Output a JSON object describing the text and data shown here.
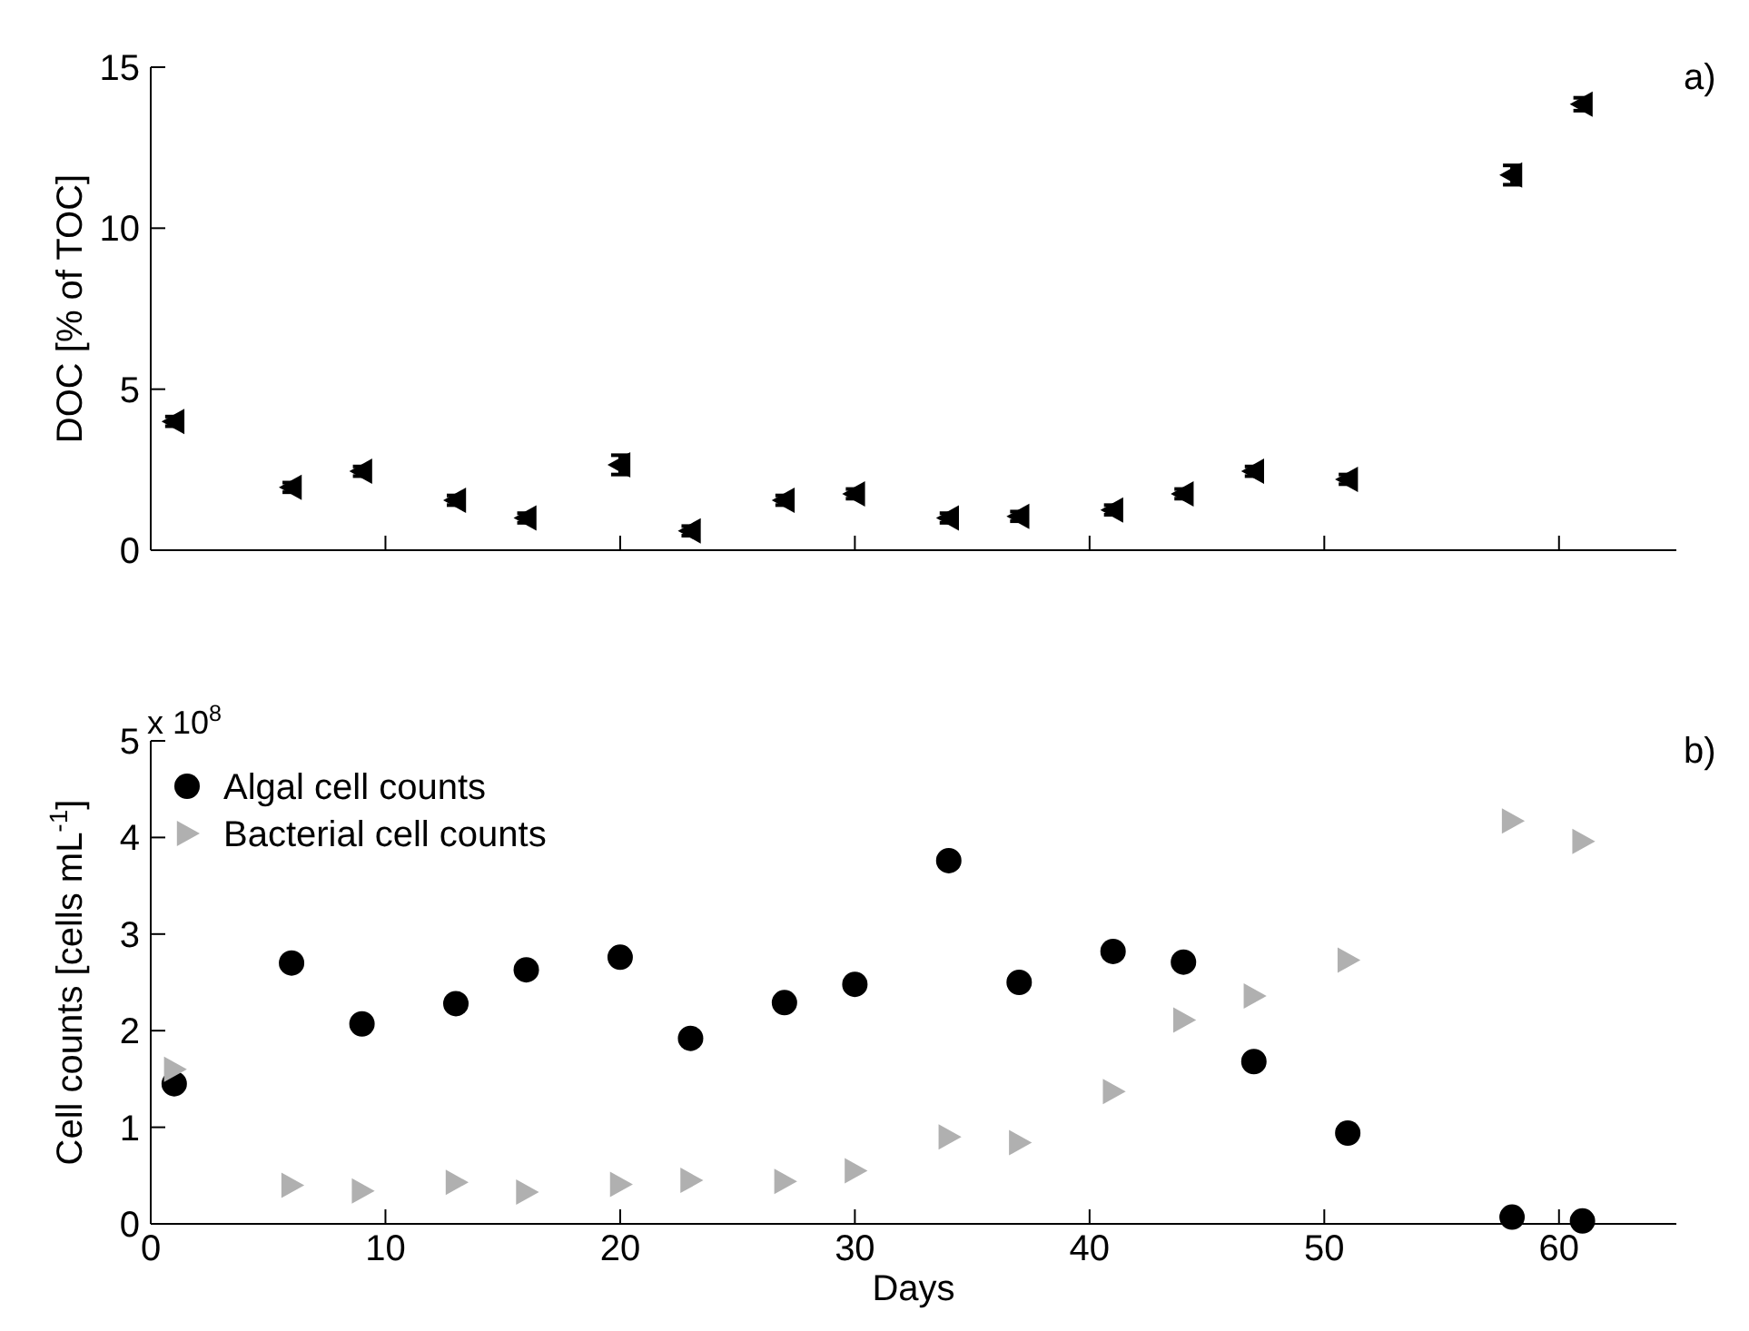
{
  "chart_data": [
    {
      "type": "scatter",
      "ylabel": "DOC [% of TOC]",
      "annotations": [
        "a)"
      ],
      "xlim": [
        0,
        65
      ],
      "xticks": [
        {
          "value": 10,
          "label": null
        },
        {
          "value": 20,
          "label": null
        },
        {
          "value": 30,
          "label": null
        },
        {
          "value": 40,
          "label": null
        },
        {
          "value": 50,
          "label": null
        },
        {
          "value": 60,
          "label": null
        }
      ],
      "ylim": [
        0,
        15
      ],
      "yticks": [
        0,
        5,
        10,
        15
      ],
      "tick_labels": "y",
      "grid": false,
      "legend": false,
      "marker": "triangle",
      "x": [
        1,
        6,
        9,
        13,
        16,
        20,
        23,
        27,
        30,
        34,
        37,
        41,
        44,
        47,
        51,
        58,
        61
      ],
      "series": [
        {
          "color": "#000000",
          "values": [
            4.0,
            1.95,
            2.45,
            1.55,
            1.0,
            2.65,
            0.6,
            1.55,
            1.75,
            1.0,
            1.05,
            1.25,
            1.75,
            2.45,
            2.2,
            11.65,
            13.85
          ],
          "errors": [
            0.15,
            0.15,
            0.15,
            0.15,
            0.15,
            0.3,
            0.15,
            0.15,
            0.15,
            0.15,
            0.15,
            0.15,
            0.15,
            0.15,
            0.15,
            0.3,
            0.2
          ]
        }
      ]
    },
    {
      "type": "scatter",
      "xlabel": "Days",
      "ylabel": "Cell counts [cells mL$^{-1}$]",
      "annotations": [
        "x 10$^{8}$",
        "b)"
      ],
      "xlim": [
        0,
        65
      ],
      "xticks": [
        0,
        10,
        20,
        30,
        40,
        50,
        60
      ],
      "ylim": [
        0,
        5
      ],
      "yticks": [
        0,
        1,
        2,
        3,
        4,
        5
      ],
      "grid": false,
      "legend": "top left",
      "x": [
        1,
        6,
        9,
        13,
        16,
        20,
        23,
        27,
        30,
        34,
        37,
        41,
        44,
        47,
        51,
        58,
        61
      ],
      "series": [
        {
          "name": "Algal cell counts",
          "color": "#000000",
          "marker": "circle",
          "values": [
            1.45,
            2.7,
            2.07,
            2.28,
            2.63,
            2.76,
            1.92,
            2.29,
            2.48,
            3.76,
            2.5,
            2.82,
            2.71,
            1.68,
            0.94,
            0.07,
            0.03
          ]
        },
        {
          "name": "Bacterial cell counts",
          "color": "#b0b0b0",
          "marker": "triangle",
          "values": [
            1.6,
            0.4,
            0.34,
            0.43,
            0.33,
            0.41,
            0.45,
            0.44,
            0.55,
            0.9,
            0.84,
            1.37,
            2.11,
            2.36,
            2.73,
            4.17,
            3.96
          ]
        }
      ]
    }
  ]
}
